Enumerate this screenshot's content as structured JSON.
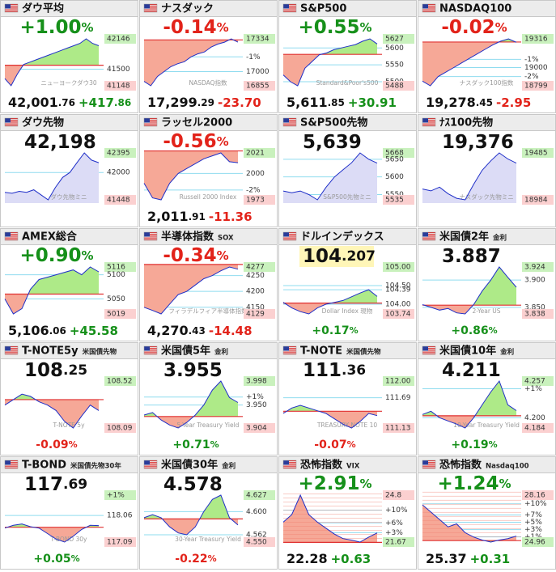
{
  "tiles": [
    {
      "title": "ダウ平均",
      "top": "+1.00%",
      "price": "42,001.76",
      "change": "+417.86",
      "labels": [
        42146,
        41500,
        41148
      ],
      "watermark": "ニューヨークダウ30",
      "prev_close": 41584,
      "line": [
        41300,
        41150,
        41400,
        41600,
        41650,
        41700,
        41750,
        41800,
        41850,
        41900,
        41950,
        42000,
        42050,
        42146,
        42050,
        42000
      ]
    },
    {
      "title": "ナスダック",
      "top": "-0.14%",
      "price": "17,299.29",
      "change": "-23.70",
      "labels": [
        17334,
        {
          "value": 17150,
          "label": "-1%"
        },
        17000,
        16855
      ],
      "watermark": "NASDAQ指数",
      "prev_close": 17323,
      "line": [
        16900,
        16855,
        16950,
        17000,
        17050,
        17080,
        17100,
        17150,
        17180,
        17200,
        17250,
        17280,
        17300,
        17334,
        17300
      ]
    },
    {
      "title": "S&P500",
      "top": "+0.55%",
      "price": "5,611.85",
      "change": "+30.91",
      "labels": [
        5627,
        5600,
        5550,
        5500,
        5488
      ],
      "watermark": "Standard&Poor's500",
      "prev_close": 5581,
      "line": [
        5520,
        5500,
        5488,
        5540,
        5560,
        5580,
        5585,
        5595,
        5600,
        5605,
        5610,
        5620,
        5627,
        5612
      ]
    },
    {
      "title": "NASDAQ100",
      "top": "-0.02%",
      "price": "19,278.45",
      "change": "-2.95",
      "labels": [
        19316,
        {
          "value": 19090,
          "label": "-1%"
        },
        19000,
        {
          "value": 18900,
          "label": "-2%"
        },
        18799
      ],
      "watermark": "ナスダック100指数",
      "prev_close": 19281,
      "line": [
        18850,
        18799,
        18900,
        18950,
        19000,
        19050,
        19100,
        19150,
        19200,
        19250,
        19290,
        19316,
        19278
      ]
    },
    {
      "title": "ダウ先物",
      "top": "42,198",
      "labels": [
        42395,
        42000,
        41448
      ],
      "watermark": "ダウ先物ミニ",
      "area": "floor",
      "line": [
        41600,
        41580,
        41620,
        41600,
        41650,
        41550,
        41448,
        41700,
        41900,
        42000,
        42200,
        42395,
        42250,
        42198
      ]
    },
    {
      "title": "ラッセル2000",
      "top": "-0.56%",
      "price": "2,011.91",
      "change": "-11.36",
      "labels": [
        2021,
        2000,
        {
          "value": 1983,
          "label": "-2%"
        },
        1973
      ],
      "watermark": "Russell 2000 Index",
      "prev_close": 2023,
      "line": [
        1990,
        1975,
        1973,
        1990,
        2000,
        2005,
        2010,
        2015,
        2018,
        2021,
        2012,
        2011
      ]
    },
    {
      "title": "S&P500先物",
      "top": "5,639",
      "labels": [
        5668,
        5650,
        5600,
        5550,
        5535
      ],
      "watermark": "S&P500先物ミニ",
      "area": "floor",
      "line": [
        5560,
        5555,
        5560,
        5550,
        5535,
        5570,
        5600,
        5620,
        5640,
        5668,
        5650,
        5639
      ]
    },
    {
      "title": "ﾅｽ100先物",
      "top": "19,376",
      "labels": [
        19485,
        18984
      ],
      "watermark": "ナスダック先物ミニ",
      "area": "floor",
      "line": [
        19100,
        19080,
        19120,
        19050,
        19000,
        18984,
        19150,
        19300,
        19400,
        19485,
        19420,
        19376
      ]
    },
    {
      "title": "AMEX総合",
      "top": "+0.90%",
      "price": "5,106.06",
      "change": "+45.58",
      "labels": [
        5116,
        5100,
        5050,
        5019
      ],
      "prev_close": 5060,
      "line": [
        5050,
        5019,
        5030,
        5070,
        5090,
        5095,
        5100,
        5105,
        5110,
        5100,
        5116,
        5106
      ]
    },
    {
      "title": "半導体指数",
      "tag": "SOX",
      "top": "-0.34%",
      "price": "4,270.43",
      "change": "-14.48",
      "labels": [
        4277,
        4250,
        4200,
        4150,
        4129
      ],
      "watermark": "フィラデルフィア半導体指数",
      "prev_close": 4285,
      "line": [
        4150,
        4140,
        4129,
        4160,
        4190,
        4200,
        4220,
        4240,
        4250,
        4265,
        4277,
        4270
      ]
    },
    {
      "title": "ドルインデックス",
      "top": "104.207",
      "highlight": true,
      "bottom": "+0.17%",
      "labels": [
        {
          "value": 105,
          "label": "105.00"
        },
        {
          "value": 104.5,
          "label": "104.50"
        },
        104.39,
        {
          "value": 104,
          "label": "104.00"
        },
        103.74
      ],
      "watermark": "Dollar Index 現物",
      "prev_close": 104.03,
      "line": [
        104.05,
        103.9,
        103.8,
        103.74,
        103.9,
        104.0,
        104.05,
        104.1,
        104.2,
        104.3,
        104.39,
        104.21
      ]
    },
    {
      "title": "米国債2年",
      "tag": "金利",
      "top": "3.887",
      "bottom": "+0.86%",
      "labels": [
        3.924,
        {
          "value": 3.9,
          "label": "3.900"
        },
        {
          "value": 3.85,
          "label": "3.850"
        },
        3.838
      ],
      "watermark": "2-Year US",
      "prev_close": 3.854,
      "line": [
        3.855,
        3.85,
        3.845,
        3.848,
        3.84,
        3.838,
        3.855,
        3.88,
        3.9,
        3.924,
        3.905,
        3.887
      ]
    },
    {
      "title": "T-NOTE5y",
      "tag": "米国債先物",
      "top": "108.25",
      "bottom": "-0.09%",
      "labels": [
        108.52,
        108.09
      ],
      "watermark": "T-NOTE 5y",
      "prev_close": 108.35,
      "line": [
        108.3,
        108.35,
        108.4,
        108.38,
        108.33,
        108.3,
        108.25,
        108.15,
        108.09,
        108.2,
        108.3,
        108.25
      ]
    },
    {
      "title": "米国債5年",
      "tag": "金利",
      "top": "3.955",
      "bottom": "+0.71%",
      "labels": [
        3.998,
        {
          "value": 3.966,
          "label": "+1%"
        },
        {
          "value": 3.95,
          "label": "3.950"
        },
        3.904
      ],
      "watermark": "5-Year Treasury Yield",
      "prev_close": 3.927,
      "line": [
        3.93,
        3.935,
        3.92,
        3.91,
        3.904,
        3.915,
        3.93,
        3.95,
        3.98,
        3.998,
        3.965,
        3.955
      ]
    },
    {
      "title": "T-NOTE",
      "tag": "米国債先物",
      "top": "111.36",
      "bottom": "-0.07%",
      "labels": [
        {
          "value": 112,
          "label": "112.00"
        },
        111.69,
        111.13
      ],
      "watermark": "TREASURY NOTE 10",
      "prev_close": 111.44,
      "line": [
        111.4,
        111.5,
        111.55,
        111.5,
        111.45,
        111.4,
        111.3,
        111.2,
        111.13,
        111.25,
        111.4,
        111.36
      ]
    },
    {
      "title": "米国債10年",
      "tag": "金利",
      "top": "4.211",
      "bottom": "+0.19%",
      "labels": [
        4.257,
        {
          "value": 4.245,
          "label": "+1%"
        },
        {
          "value": 4.2,
          "label": "4.200"
        },
        4.184
      ],
      "watermark": "10-Year Treasury Yield",
      "prev_close": 4.203,
      "line": [
        4.205,
        4.21,
        4.2,
        4.195,
        4.19,
        4.184,
        4.2,
        4.22,
        4.24,
        4.257,
        4.22,
        4.211
      ]
    },
    {
      "title": "T-BOND",
      "tag": "米国債先物30年",
      "top": "117.69",
      "bottom": "+0.05%",
      "labels": [
        {
          "value": 118.8,
          "label": "+1%"
        },
        118.06,
        117.09
      ],
      "watermark": "T-BOND 30y",
      "prev_close": 117.63,
      "line": [
        117.6,
        117.7,
        117.75,
        117.65,
        117.6,
        117.4,
        117.2,
        117.09,
        117.3,
        117.55,
        117.7,
        117.69
      ]
    },
    {
      "title": "米国債30年",
      "tag": "金利",
      "top": "4.578",
      "bottom": "-0.22%",
      "labels": [
        4.627,
        {
          "value": 4.6,
          "label": "4.600"
        },
        4.562,
        {
          "value": 4.55,
          "label": "4.550"
        }
      ],
      "watermark": "30-Year Treasury Yield",
      "prev_close": 4.588,
      "line": [
        4.59,
        4.595,
        4.59,
        4.575,
        4.565,
        4.562,
        4.575,
        4.6,
        4.62,
        4.627,
        4.59,
        4.578
      ]
    },
    {
      "title": "恐怖指数",
      "tag": "VIX",
      "top": "+2.91%",
      "price": "22.28",
      "change": "+0.63",
      "inverse": true,
      "labels": [
        24.8,
        {
          "value": 23.8,
          "label": "+10%"
        },
        {
          "value": 22.95,
          "label": "+6%"
        },
        {
          "value": 22.3,
          "label": "+3%"
        },
        21.67
      ],
      "prev_close": 21.65,
      "line": [
        23.0,
        23.5,
        24.8,
        23.5,
        23.0,
        22.6,
        22.2,
        21.9,
        21.8,
        21.67,
        22.0,
        22.28
      ]
    },
    {
      "title": "恐怖指数",
      "tag": "Nasdaq100",
      "top": "+1.24%",
      "price": "25.37",
      "change": "+0.31",
      "inverse": true,
      "labels": [
        28.16,
        {
          "value": 27.57,
          "label": "+10%"
        },
        {
          "value": 26.81,
          "label": "+7%"
        },
        {
          "value": 26.31,
          "label": "+5%"
        },
        {
          "value": 25.81,
          "label": "+3%"
        },
        {
          "value": 25.31,
          "label": "+1%"
        },
        24.96
      ],
      "prev_close": 25.06,
      "line": [
        27.5,
        27.0,
        26.5,
        26.0,
        26.2,
        25.6,
        25.3,
        25.1,
        24.96,
        25.1,
        25.2,
        25.37
      ]
    }
  ]
}
